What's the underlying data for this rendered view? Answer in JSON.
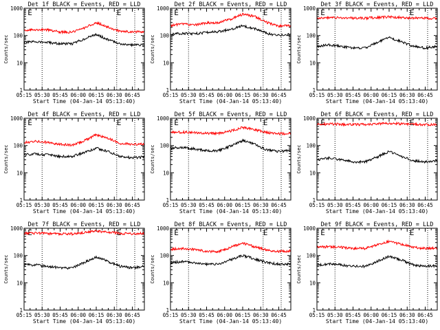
{
  "figure": {
    "background": "#ffffff",
    "axis_color": "#000000",
    "events_color": "#000000",
    "lld_color": "#ff0000"
  },
  "chart_data": [
    {
      "type": "line",
      "title": "Det 1f BLACK = Events, RED = LLD",
      "xlabel": "Start Time (04-Jan-14 05:13:40)",
      "ylabel": "Counts/sec",
      "yscale": "log",
      "ylim": [
        1,
        1000
      ],
      "x_ticks": [
        "05:15",
        "05:30",
        "05:45",
        "06:00",
        "06:15",
        "06:30",
        "06:45"
      ],
      "y_ticks": [
        "1",
        "10",
        "100",
        "1000"
      ],
      "time_range": [
        "05:15",
        "06:55"
      ],
      "markers": [
        {
          "label": "E",
          "time": "05:18"
        },
        {
          "label": "E",
          "time": "06:32"
        }
      ],
      "dotted_lines": [
        "05:30",
        "06:32",
        "06:47"
      ],
      "series": [
        {
          "name": "Events",
          "color": "#000000",
          "x": [
            "05:15",
            "05:25",
            "05:35",
            "05:45",
            "05:55",
            "06:05",
            "06:15",
            "06:25",
            "06:35",
            "06:45",
            "06:55"
          ],
          "values": [
            55,
            60,
            55,
            50,
            50,
            75,
            110,
            70,
            50,
            45,
            45
          ]
        },
        {
          "name": "LLD",
          "color": "#ff0000",
          "x": [
            "05:15",
            "05:25",
            "05:35",
            "05:45",
            "05:55",
            "06:05",
            "06:15",
            "06:25",
            "06:35",
            "06:45",
            "06:55"
          ],
          "values": [
            150,
            165,
            160,
            135,
            130,
            190,
            300,
            200,
            140,
            135,
            140
          ]
        }
      ]
    },
    {
      "type": "line",
      "title": "Det 2f BLACK = Events, RED = LLD",
      "xlabel": "Start Time (04-Jan-14 05:13:40)",
      "ylabel": "Counts/sec",
      "yscale": "log",
      "ylim": [
        1,
        1000
      ],
      "x_ticks": [
        "05:15",
        "05:30",
        "05:45",
        "06:00",
        "06:15",
        "06:30",
        "06:45"
      ],
      "y_ticks": [
        "1",
        "10",
        "100",
        "1000"
      ],
      "time_range": [
        "05:15",
        "06:55"
      ],
      "markers": [
        {
          "label": "E",
          "time": "05:18"
        },
        {
          "label": "E",
          "time": "06:32"
        }
      ],
      "dotted_lines": [
        "05:30",
        "06:32",
        "06:47"
      ],
      "series": [
        {
          "name": "Events",
          "color": "#000000",
          "x": [
            "05:15",
            "05:25",
            "05:35",
            "05:45",
            "05:55",
            "06:05",
            "06:15",
            "06:25",
            "06:35",
            "06:45",
            "06:55"
          ],
          "values": [
            110,
            120,
            115,
            130,
            140,
            170,
            230,
            180,
            120,
            100,
            110
          ]
        },
        {
          "name": "LLD",
          "color": "#ff0000",
          "x": [
            "05:15",
            "05:25",
            "05:35",
            "05:45",
            "05:55",
            "06:05",
            "06:15",
            "06:25",
            "06:35",
            "06:45",
            "06:55"
          ],
          "values": [
            230,
            270,
            240,
            290,
            300,
            400,
            600,
            500,
            300,
            220,
            230
          ]
        }
      ]
    },
    {
      "type": "line",
      "title": "Det 3f BLACK = Events, RED = LLD",
      "xlabel": "Start Time (04-Jan-14 05:13:40)",
      "ylabel": "Counts/sec",
      "yscale": "log",
      "ylim": [
        1,
        1000
      ],
      "x_ticks": [
        "05:15",
        "05:30",
        "05:45",
        "06:00",
        "06:15",
        "06:30",
        "06:45"
      ],
      "y_ticks": [
        "1",
        "10",
        "100",
        "1000"
      ],
      "time_range": [
        "05:15",
        "06:55"
      ],
      "markers": [
        {
          "label": "E",
          "time": "05:18"
        },
        {
          "label": "E",
          "time": "06:32"
        }
      ],
      "dotted_lines": [
        "05:30",
        "06:32",
        "06:47"
      ],
      "series": [
        {
          "name": "Events",
          "color": "#000000",
          "x": [
            "05:15",
            "05:25",
            "05:35",
            "05:45",
            "05:55",
            "06:05",
            "06:15",
            "06:25",
            "06:35",
            "06:45",
            "06:55"
          ],
          "values": [
            40,
            45,
            40,
            35,
            35,
            55,
            85,
            60,
            40,
            35,
            40
          ]
        },
        {
          "name": "LLD",
          "color": "#ff0000",
          "x": [
            "05:15",
            "05:25",
            "05:35",
            "05:45",
            "05:55",
            "06:05",
            "06:15",
            "06:25",
            "06:35",
            "06:45",
            "06:55"
          ],
          "values": [
            440,
            450,
            445,
            435,
            430,
            460,
            480,
            460,
            440,
            430,
            430
          ]
        }
      ]
    },
    {
      "type": "line",
      "title": "Det 4f BLACK = Events, RED = LLD",
      "xlabel": "Start Time (04-Jan-14 05:13:40)",
      "ylabel": "Counts/sec",
      "yscale": "log",
      "ylim": [
        1,
        1000
      ],
      "x_ticks": [
        "05:15",
        "05:30",
        "05:45",
        "06:00",
        "06:15",
        "06:30",
        "06:45"
      ],
      "y_ticks": [
        "1",
        "10",
        "100",
        "1000"
      ],
      "time_range": [
        "05:15",
        "06:55"
      ],
      "markers": [
        {
          "label": "E",
          "time": "05:18"
        },
        {
          "label": "E",
          "time": "06:32"
        }
      ],
      "dotted_lines": [
        "05:30",
        "06:32",
        "06:47"
      ],
      "series": [
        {
          "name": "Events",
          "color": "#000000",
          "x": [
            "05:15",
            "05:25",
            "05:35",
            "05:45",
            "05:55",
            "06:05",
            "06:15",
            "06:25",
            "06:35",
            "06:45",
            "06:55"
          ],
          "values": [
            45,
            50,
            45,
            40,
            40,
            55,
            80,
            60,
            40,
            35,
            38
          ]
        },
        {
          "name": "LLD",
          "color": "#ff0000",
          "x": [
            "05:15",
            "05:25",
            "05:35",
            "05:45",
            "05:55",
            "06:05",
            "06:15",
            "06:25",
            "06:35",
            "06:45",
            "06:55"
          ],
          "values": [
            130,
            140,
            130,
            110,
            105,
            150,
            250,
            180,
            120,
            110,
            115
          ]
        }
      ]
    },
    {
      "type": "line",
      "title": "Det 5f BLACK = Events, RED = LLD",
      "xlabel": "Start Time (04-Jan-14 05:13:40)",
      "ylabel": "Counts/sec",
      "yscale": "log",
      "ylim": [
        1,
        1000
      ],
      "x_ticks": [
        "05:15",
        "05:30",
        "05:45",
        "06:00",
        "06:15",
        "06:30",
        "06:45"
      ],
      "y_ticks": [
        "1",
        "10",
        "100",
        "1000"
      ],
      "time_range": [
        "05:15",
        "06:55"
      ],
      "markers": [
        {
          "label": "E",
          "time": "05:18"
        },
        {
          "label": "E",
          "time": "06:32"
        }
      ],
      "dotted_lines": [
        "05:30",
        "06:32",
        "06:47"
      ],
      "series": [
        {
          "name": "Events",
          "color": "#000000",
          "x": [
            "05:15",
            "05:25",
            "05:35",
            "05:45",
            "05:55",
            "06:05",
            "06:15",
            "06:25",
            "06:35",
            "06:45",
            "06:55"
          ],
          "values": [
            80,
            85,
            75,
            65,
            65,
            95,
            150,
            110,
            70,
            60,
            65
          ]
        },
        {
          "name": "LLD",
          "color": "#ff0000",
          "x": [
            "05:15",
            "05:25",
            "05:35",
            "05:45",
            "05:55",
            "06:05",
            "06:15",
            "06:25",
            "06:35",
            "06:45",
            "06:55"
          ],
          "values": [
            300,
            310,
            300,
            280,
            280,
            340,
            460,
            380,
            300,
            270,
            280
          ]
        }
      ]
    },
    {
      "type": "line",
      "title": "Det 6f BLACK = Events, RED = LLD",
      "xlabel": "Start Time (04-Jan-14 05:13:40)",
      "ylabel": "Counts/sec",
      "yscale": "log",
      "ylim": [
        1,
        1000
      ],
      "x_ticks": [
        "05:15",
        "05:30",
        "05:45",
        "06:00",
        "06:15",
        "06:30",
        "06:45"
      ],
      "y_ticks": [
        "1",
        "10",
        "100",
        "1000"
      ],
      "time_range": [
        "05:15",
        "06:55"
      ],
      "markers": [
        {
          "label": "E",
          "time": "05:18"
        },
        {
          "label": "E",
          "time": "06:32"
        }
      ],
      "dotted_lines": [
        "05:30",
        "06:32",
        "06:47"
      ],
      "series": [
        {
          "name": "Events",
          "color": "#000000",
          "x": [
            "05:15",
            "05:25",
            "05:35",
            "05:45",
            "05:55",
            "06:05",
            "06:15",
            "06:25",
            "06:35",
            "06:45",
            "06:55"
          ],
          "values": [
            30,
            35,
            30,
            25,
            25,
            38,
            60,
            40,
            28,
            25,
            28
          ]
        },
        {
          "name": "LLD",
          "color": "#ff0000",
          "x": [
            "05:15",
            "05:25",
            "05:35",
            "05:45",
            "05:55",
            "06:05",
            "06:15",
            "06:25",
            "06:35",
            "06:45",
            "06:55"
          ],
          "values": [
            600,
            610,
            600,
            590,
            590,
            620,
            650,
            630,
            600,
            580,
            590
          ]
        }
      ]
    },
    {
      "type": "line",
      "title": "Det 7f BLACK = Events, RED = LLD",
      "xlabel": "Start Time (04-Jan-14 05:13:40)",
      "ylabel": "Counts/sec",
      "yscale": "log",
      "ylim": [
        1,
        1000
      ],
      "x_ticks": [
        "05:15",
        "05:30",
        "05:45",
        "06:00",
        "06:15",
        "06:30",
        "06:45"
      ],
      "y_ticks": [
        "1",
        "10",
        "100",
        "1000"
      ],
      "time_range": [
        "05:15",
        "06:55"
      ],
      "markers": [
        {
          "label": "E",
          "time": "05:18"
        },
        {
          "label": "E",
          "time": "06:32"
        }
      ],
      "dotted_lines": [
        "05:30",
        "06:32",
        "06:47"
      ],
      "series": [
        {
          "name": "Events",
          "color": "#000000",
          "x": [
            "05:15",
            "05:25",
            "05:35",
            "05:45",
            "05:55",
            "06:05",
            "06:15",
            "06:25",
            "06:35",
            "06:45",
            "06:55"
          ],
          "values": [
            45,
            45,
            40,
            35,
            35,
            55,
            90,
            60,
            40,
            35,
            40
          ]
        },
        {
          "name": "LLD",
          "color": "#ff0000",
          "x": [
            "05:15",
            "05:25",
            "05:35",
            "05:45",
            "05:55",
            "06:05",
            "06:15",
            "06:25",
            "06:35",
            "06:45",
            "06:55"
          ],
          "values": [
            650,
            660,
            640,
            620,
            620,
            700,
            800,
            720,
            650,
            620,
            640
          ]
        }
      ]
    },
    {
      "type": "line",
      "title": "Det 8f BLACK = Events, RED = LLD",
      "xlabel": "Start Time (04-Jan-14 05:13:40)",
      "ylabel": "Counts/sec",
      "yscale": "log",
      "ylim": [
        1,
        1000
      ],
      "x_ticks": [
        "05:15",
        "05:30",
        "05:45",
        "06:00",
        "06:15",
        "06:30",
        "06:45"
      ],
      "y_ticks": [
        "1",
        "10",
        "100",
        "1000"
      ],
      "time_range": [
        "05:15",
        "06:55"
      ],
      "markers": [
        {
          "label": "E",
          "time": "05:18"
        },
        {
          "label": "E",
          "time": "06:32"
        }
      ],
      "dotted_lines": [
        "05:30",
        "06:32",
        "06:47"
      ],
      "series": [
        {
          "name": "Events",
          "color": "#000000",
          "x": [
            "05:15",
            "05:25",
            "05:35",
            "05:45",
            "05:55",
            "06:05",
            "06:15",
            "06:25",
            "06:35",
            "06:45",
            "06:55"
          ],
          "values": [
            55,
            60,
            55,
            48,
            48,
            70,
            100,
            75,
            55,
            48,
            50
          ]
        },
        {
          "name": "LLD",
          "color": "#ff0000",
          "x": [
            "05:15",
            "05:25",
            "05:35",
            "05:45",
            "05:55",
            "06:05",
            "06:15",
            "06:25",
            "06:35",
            "06:45",
            "06:55"
          ],
          "values": [
            170,
            180,
            165,
            140,
            140,
            200,
            280,
            210,
            160,
            140,
            150
          ]
        }
      ]
    },
    {
      "type": "line",
      "title": "Det 9f BLACK = Events, RED = LLD",
      "xlabel": "Start Time (04-Jan-14 05:13:40)",
      "ylabel": "Counts/sec",
      "yscale": "log",
      "ylim": [
        1,
        1000
      ],
      "x_ticks": [
        "05:15",
        "05:30",
        "05:45",
        "06:00",
        "06:15",
        "06:30",
        "06:45"
      ],
      "y_ticks": [
        "1",
        "10",
        "100",
        "1000"
      ],
      "time_range": [
        "05:15",
        "06:55"
      ],
      "markers": [
        {
          "label": "E",
          "time": "05:18"
        },
        {
          "label": "E",
          "time": "06:32"
        }
      ],
      "dotted_lines": [
        "05:30",
        "06:32",
        "06:47"
      ],
      "series": [
        {
          "name": "Events",
          "color": "#000000",
          "x": [
            "05:15",
            "05:25",
            "05:35",
            "05:45",
            "05:55",
            "06:05",
            "06:15",
            "06:25",
            "06:35",
            "06:45",
            "06:55"
          ],
          "values": [
            45,
            50,
            45,
            40,
            40,
            60,
            95,
            70,
            45,
            40,
            42
          ]
        },
        {
          "name": "LLD",
          "color": "#ff0000",
          "x": [
            "05:15",
            "05:25",
            "05:35",
            "05:45",
            "05:55",
            "06:05",
            "06:15",
            "06:25",
            "06:35",
            "06:45",
            "06:55"
          ],
          "values": [
            200,
            210,
            200,
            180,
            180,
            240,
            330,
            260,
            200,
            180,
            190
          ]
        }
      ]
    }
  ]
}
